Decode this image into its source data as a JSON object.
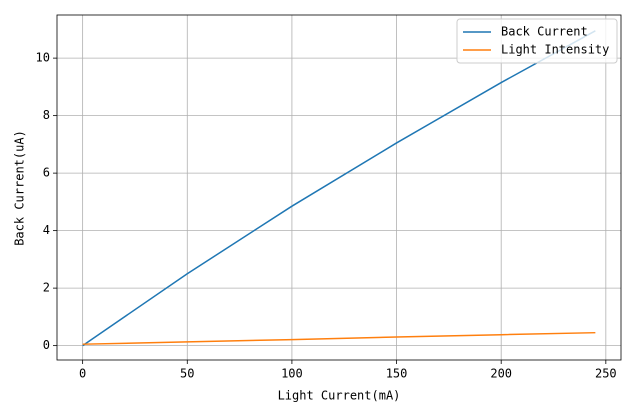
{
  "chart_data": {
    "type": "line",
    "x": [
      0,
      50,
      100,
      150,
      200,
      245
    ],
    "series": [
      {
        "name": "Back Current",
        "color": "#1f77b4",
        "values": [
          0,
          2.5,
          4.85,
          7.05,
          9.15,
          10.95
        ]
      },
      {
        "name": "Light Intensity",
        "color": "#ff7f0e",
        "values": [
          0.05,
          0.13,
          0.21,
          0.3,
          0.38,
          0.45
        ]
      }
    ],
    "xlabel": "Light Current(mA)",
    "ylabel": "Back Current(uA)",
    "xlim": [
      -12.25,
      257.25
    ],
    "ylim": [
      -0.5,
      11.5
    ],
    "xticks": [
      0,
      50,
      100,
      150,
      200,
      250
    ],
    "yticks": [
      0,
      2,
      4,
      6,
      8,
      10
    ],
    "grid": true,
    "legend": "upper right"
  }
}
